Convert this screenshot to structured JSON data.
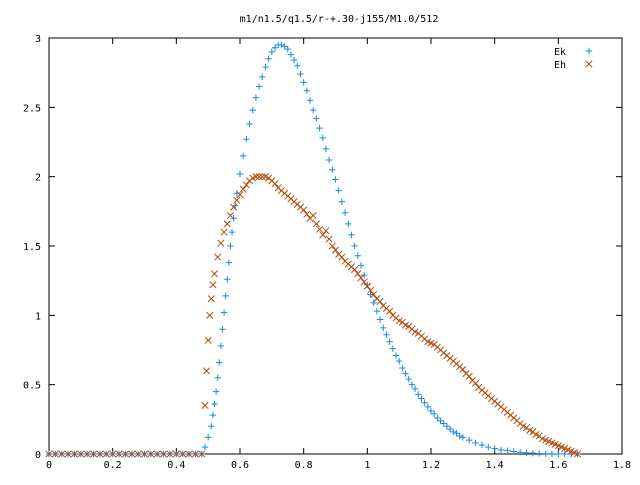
{
  "chart_data": {
    "type": "scatter",
    "title": "m1/n1.5/q1.5/r-+.30-j155/M1.0/512",
    "xlabel": "",
    "ylabel": "",
    "xlim": [
      0,
      1.8
    ],
    "ylim": [
      0,
      3
    ],
    "x_ticks": [
      "0",
      "0.2",
      "0.4",
      "0.6",
      "0.8",
      "1",
      "1.2",
      "1.4",
      "1.6",
      "1.8"
    ],
    "y_ticks": [
      "0",
      "0.5",
      "1",
      "1.5",
      "2",
      "2.5",
      "3"
    ],
    "grid": false,
    "legend_position": "top-right",
    "series": [
      {
        "name": "Ek",
        "marker": "plus",
        "color": "#1a8ae6",
        "points": [
          [
            0.0,
            0
          ],
          [
            0.02,
            0
          ],
          [
            0.04,
            0
          ],
          [
            0.06,
            0
          ],
          [
            0.08,
            0
          ],
          [
            0.1,
            0
          ],
          [
            0.12,
            0
          ],
          [
            0.14,
            0
          ],
          [
            0.16,
            0
          ],
          [
            0.18,
            0
          ],
          [
            0.2,
            0
          ],
          [
            0.22,
            0
          ],
          [
            0.24,
            0
          ],
          [
            0.26,
            0
          ],
          [
            0.28,
            0
          ],
          [
            0.3,
            0
          ],
          [
            0.32,
            0
          ],
          [
            0.34,
            0
          ],
          [
            0.36,
            0
          ],
          [
            0.38,
            0
          ],
          [
            0.4,
            0
          ],
          [
            0.42,
            0
          ],
          [
            0.44,
            0
          ],
          [
            0.46,
            0
          ],
          [
            0.48,
            0
          ],
          [
            0.49,
            0.05
          ],
          [
            0.5,
            0.12
          ],
          [
            0.51,
            0.2
          ],
          [
            0.515,
            0.28
          ],
          [
            0.52,
            0.36
          ],
          [
            0.525,
            0.45
          ],
          [
            0.53,
            0.55
          ],
          [
            0.535,
            0.66
          ],
          [
            0.54,
            0.78
          ],
          [
            0.545,
            0.9
          ],
          [
            0.55,
            1.02
          ],
          [
            0.555,
            1.14
          ],
          [
            0.56,
            1.26
          ],
          [
            0.565,
            1.38
          ],
          [
            0.57,
            1.5
          ],
          [
            0.575,
            1.6
          ],
          [
            0.58,
            1.7
          ],
          [
            0.585,
            1.79
          ],
          [
            0.59,
            1.88
          ],
          [
            0.6,
            2.02
          ],
          [
            0.61,
            2.15
          ],
          [
            0.62,
            2.27
          ],
          [
            0.63,
            2.38
          ],
          [
            0.64,
            2.48
          ],
          [
            0.65,
            2.57
          ],
          [
            0.66,
            2.65
          ],
          [
            0.67,
            2.72
          ],
          [
            0.68,
            2.79
          ],
          [
            0.69,
            2.85
          ],
          [
            0.7,
            2.9
          ],
          [
            0.71,
            2.93
          ],
          [
            0.72,
            2.95
          ],
          [
            0.73,
            2.95
          ],
          [
            0.74,
            2.94
          ],
          [
            0.75,
            2.92
          ],
          [
            0.76,
            2.88
          ],
          [
            0.77,
            2.84
          ],
          [
            0.78,
            2.8
          ],
          [
            0.79,
            2.74
          ],
          [
            0.8,
            2.68
          ],
          [
            0.81,
            2.62
          ],
          [
            0.82,
            2.55
          ],
          [
            0.83,
            2.48
          ],
          [
            0.84,
            2.42
          ],
          [
            0.85,
            2.35
          ],
          [
            0.86,
            2.28
          ],
          [
            0.87,
            2.2
          ],
          [
            0.88,
            2.12
          ],
          [
            0.89,
            2.05
          ],
          [
            0.9,
            1.98
          ],
          [
            0.91,
            1.9
          ],
          [
            0.92,
            1.82
          ],
          [
            0.93,
            1.74
          ],
          [
            0.94,
            1.66
          ],
          [
            0.95,
            1.58
          ],
          [
            0.96,
            1.5
          ],
          [
            0.97,
            1.43
          ],
          [
            0.98,
            1.36
          ],
          [
            0.99,
            1.29
          ],
          [
            1.0,
            1.22
          ],
          [
            1.01,
            1.15
          ],
          [
            1.02,
            1.09
          ],
          [
            1.03,
            1.03
          ],
          [
            1.04,
            0.97
          ],
          [
            1.05,
            0.91
          ],
          [
            1.06,
            0.86
          ],
          [
            1.07,
            0.81
          ],
          [
            1.08,
            0.76
          ],
          [
            1.09,
            0.71
          ],
          [
            1.1,
            0.67
          ],
          [
            1.11,
            0.62
          ],
          [
            1.12,
            0.58
          ],
          [
            1.13,
            0.54
          ],
          [
            1.14,
            0.5
          ],
          [
            1.15,
            0.47
          ],
          [
            1.16,
            0.43
          ],
          [
            1.17,
            0.4
          ],
          [
            1.18,
            0.37
          ],
          [
            1.19,
            0.34
          ],
          [
            1.2,
            0.31
          ],
          [
            1.21,
            0.29
          ],
          [
            1.22,
            0.26
          ],
          [
            1.23,
            0.24
          ],
          [
            1.24,
            0.22
          ],
          [
            1.25,
            0.2
          ],
          [
            1.26,
            0.18
          ],
          [
            1.27,
            0.16
          ],
          [
            1.28,
            0.15
          ],
          [
            1.29,
            0.13
          ],
          [
            1.3,
            0.12
          ],
          [
            1.32,
            0.1
          ],
          [
            1.34,
            0.08
          ],
          [
            1.36,
            0.065
          ],
          [
            1.38,
            0.05
          ],
          [
            1.4,
            0.04
          ],
          [
            1.42,
            0.03
          ],
          [
            1.44,
            0.024
          ],
          [
            1.46,
            0.018
          ],
          [
            1.48,
            0.013
          ],
          [
            1.5,
            0.009
          ],
          [
            1.52,
            0.006
          ],
          [
            1.54,
            0.004
          ],
          [
            1.56,
            0.002
          ],
          [
            1.58,
            0.001
          ],
          [
            1.6,
            0.0
          ],
          [
            1.62,
            0.0
          ],
          [
            1.64,
            0.0
          ],
          [
            1.66,
            0.0
          ]
        ]
      },
      {
        "name": "Eh",
        "marker": "x",
        "color": "#b34d0d",
        "points": [
          [
            0.0,
            0
          ],
          [
            0.02,
            0
          ],
          [
            0.04,
            0
          ],
          [
            0.06,
            0
          ],
          [
            0.08,
            0
          ],
          [
            0.1,
            0
          ],
          [
            0.12,
            0
          ],
          [
            0.14,
            0
          ],
          [
            0.16,
            0
          ],
          [
            0.18,
            0
          ],
          [
            0.2,
            0
          ],
          [
            0.22,
            0
          ],
          [
            0.24,
            0
          ],
          [
            0.26,
            0
          ],
          [
            0.28,
            0
          ],
          [
            0.3,
            0
          ],
          [
            0.32,
            0
          ],
          [
            0.34,
            0
          ],
          [
            0.36,
            0
          ],
          [
            0.38,
            0
          ],
          [
            0.4,
            0
          ],
          [
            0.42,
            0
          ],
          [
            0.44,
            0
          ],
          [
            0.46,
            0
          ],
          [
            0.48,
            0
          ],
          [
            0.49,
            0.35
          ],
          [
            0.495,
            0.6
          ],
          [
            0.5,
            0.82
          ],
          [
            0.505,
            1.0
          ],
          [
            0.51,
            1.12
          ],
          [
            0.515,
            1.22
          ],
          [
            0.52,
            1.3
          ],
          [
            0.53,
            1.42
          ],
          [
            0.54,
            1.52
          ],
          [
            0.55,
            1.6
          ],
          [
            0.56,
            1.66
          ],
          [
            0.57,
            1.72
          ],
          [
            0.58,
            1.78
          ],
          [
            0.59,
            1.83
          ],
          [
            0.6,
            1.87
          ],
          [
            0.61,
            1.91
          ],
          [
            0.62,
            1.94
          ],
          [
            0.63,
            1.97
          ],
          [
            0.64,
            1.99
          ],
          [
            0.65,
            2.0
          ],
          [
            0.66,
            2.0
          ],
          [
            0.67,
            2.0
          ],
          [
            0.68,
            2.0
          ],
          [
            0.69,
            1.99
          ],
          [
            0.7,
            1.97
          ],
          [
            0.71,
            1.95
          ],
          [
            0.72,
            1.92
          ],
          [
            0.73,
            1.9
          ],
          [
            0.74,
            1.88
          ],
          [
            0.75,
            1.86
          ],
          [
            0.76,
            1.84
          ],
          [
            0.77,
            1.82
          ],
          [
            0.78,
            1.8
          ],
          [
            0.79,
            1.78
          ],
          [
            0.8,
            1.76
          ],
          [
            0.81,
            1.73
          ],
          [
            0.82,
            1.7
          ],
          [
            0.83,
            1.72
          ],
          [
            0.84,
            1.66
          ],
          [
            0.85,
            1.62
          ],
          [
            0.86,
            1.58
          ],
          [
            0.87,
            1.61
          ],
          [
            0.88,
            1.55
          ],
          [
            0.89,
            1.5
          ],
          [
            0.9,
            1.47
          ],
          [
            0.91,
            1.44
          ],
          [
            0.92,
            1.42
          ],
          [
            0.93,
            1.39
          ],
          [
            0.94,
            1.37
          ],
          [
            0.95,
            1.35
          ],
          [
            0.96,
            1.33
          ],
          [
            0.97,
            1.3
          ],
          [
            0.98,
            1.27
          ],
          [
            0.99,
            1.24
          ],
          [
            1.0,
            1.21
          ],
          [
            1.01,
            1.18
          ],
          [
            1.02,
            1.15
          ],
          [
            1.03,
            1.12
          ],
          [
            1.04,
            1.1
          ],
          [
            1.05,
            1.07
          ],
          [
            1.06,
            1.05
          ],
          [
            1.07,
            1.03
          ],
          [
            1.08,
            1.0
          ],
          [
            1.09,
            0.98
          ],
          [
            1.1,
            0.96
          ],
          [
            1.11,
            0.95
          ],
          [
            1.12,
            0.93
          ],
          [
            1.13,
            0.92
          ],
          [
            1.14,
            0.9
          ],
          [
            1.15,
            0.88
          ],
          [
            1.16,
            0.87
          ],
          [
            1.17,
            0.85
          ],
          [
            1.18,
            0.83
          ],
          [
            1.19,
            0.81
          ],
          [
            1.2,
            0.8
          ],
          [
            1.21,
            0.79
          ],
          [
            1.22,
            0.77
          ],
          [
            1.23,
            0.75
          ],
          [
            1.24,
            0.73
          ],
          [
            1.25,
            0.71
          ],
          [
            1.26,
            0.69
          ],
          [
            1.27,
            0.67
          ],
          [
            1.28,
            0.65
          ],
          [
            1.29,
            0.63
          ],
          [
            1.3,
            0.61
          ],
          [
            1.31,
            0.58
          ],
          [
            1.32,
            0.56
          ],
          [
            1.33,
            0.53
          ],
          [
            1.34,
            0.51
          ],
          [
            1.35,
            0.48
          ],
          [
            1.36,
            0.46
          ],
          [
            1.37,
            0.44
          ],
          [
            1.38,
            0.42
          ],
          [
            1.39,
            0.4
          ],
          [
            1.4,
            0.38
          ],
          [
            1.41,
            0.36
          ],
          [
            1.42,
            0.34
          ],
          [
            1.43,
            0.32
          ],
          [
            1.44,
            0.3
          ],
          [
            1.45,
            0.28
          ],
          [
            1.46,
            0.26
          ],
          [
            1.47,
            0.24
          ],
          [
            1.48,
            0.22
          ],
          [
            1.49,
            0.2
          ],
          [
            1.5,
            0.19
          ],
          [
            1.51,
            0.17
          ],
          [
            1.52,
            0.16
          ],
          [
            1.53,
            0.14
          ],
          [
            1.54,
            0.13
          ],
          [
            1.55,
            0.11
          ],
          [
            1.56,
            0.1
          ],
          [
            1.57,
            0.09
          ],
          [
            1.58,
            0.08
          ],
          [
            1.59,
            0.07
          ],
          [
            1.6,
            0.06
          ],
          [
            1.61,
            0.05
          ],
          [
            1.62,
            0.04
          ],
          [
            1.63,
            0.03
          ],
          [
            1.64,
            0.02
          ],
          [
            1.65,
            0.01
          ],
          [
            1.66,
            0.0
          ]
        ]
      }
    ]
  }
}
